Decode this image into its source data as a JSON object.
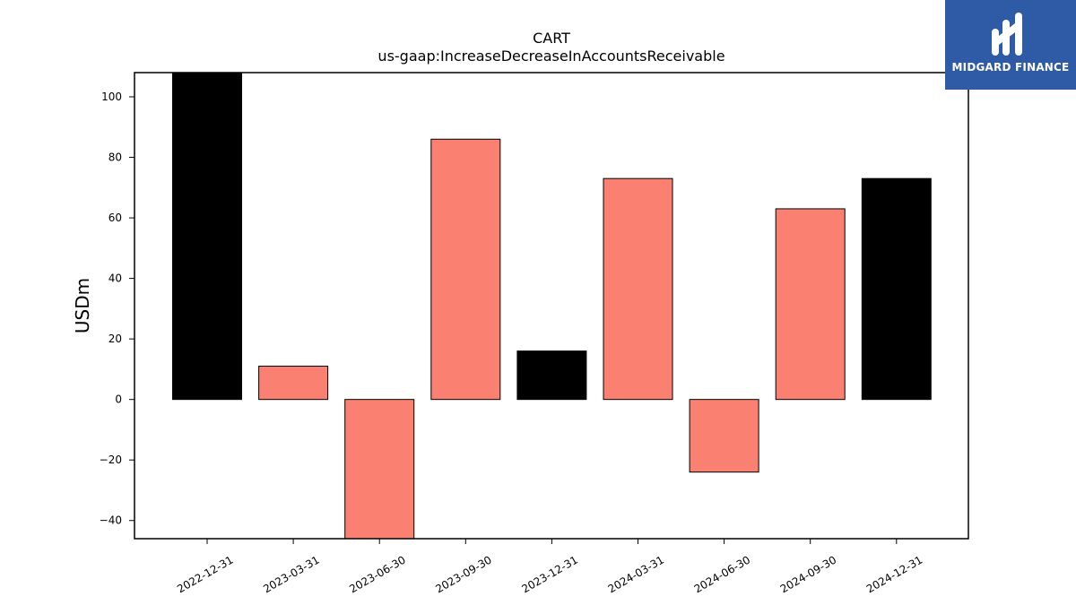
{
  "chart_data": {
    "type": "bar",
    "title": "CART",
    "subtitle": "us-gaap:IncreaseDecreaseInAccountsReceivable",
    "xlabel": "",
    "ylabel": "USDm",
    "ylim": [
      -46,
      108
    ],
    "yticks": [
      -40,
      -20,
      0,
      20,
      40,
      60,
      80,
      100
    ],
    "ytick_labels": [
      "−40",
      "−20",
      "0",
      "20",
      "40",
      "60",
      "80",
      "100"
    ],
    "categories": [
      "2022-12-31",
      "2023-03-31",
      "2023-06-30",
      "2023-09-30",
      "2023-12-31",
      "2024-03-31",
      "2024-06-30",
      "2024-09-30",
      "2024-12-31"
    ],
    "values": [
      108,
      11,
      -46,
      86,
      16,
      73,
      -24,
      63,
      73
    ],
    "bar_colors": [
      "#000000",
      "#fa8072",
      "#fa8072",
      "#fa8072",
      "#000000",
      "#fa8072",
      "#fa8072",
      "#fa8072",
      "#000000"
    ],
    "grid": false,
    "legend": "none"
  },
  "logo": {
    "text": "MIDGARD FINANCE",
    "background": "#2f5aa6"
  }
}
